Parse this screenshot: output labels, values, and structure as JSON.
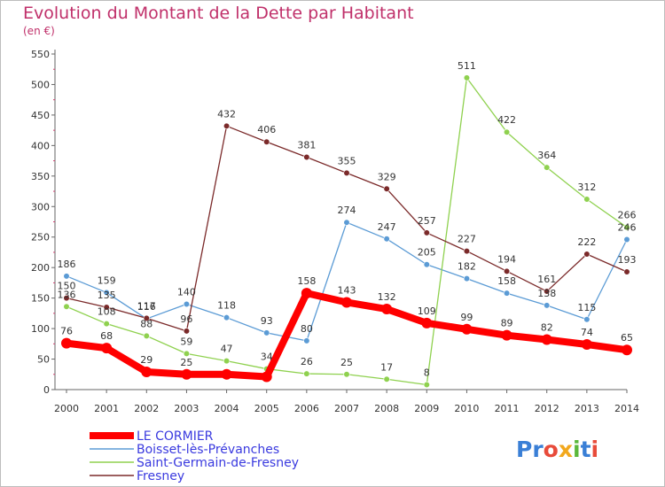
{
  "title": "Evolution du Montant de la Dette par Habitant",
  "subtitle": "(en €)",
  "logo": "Proxiti",
  "chart_data": {
    "type": "line",
    "title": "Evolution du Montant de la Dette par Habitant",
    "subtitle": "(en €)",
    "x": [
      "2000",
      "2001",
      "2002",
      "2003",
      "2004",
      "2005",
      "2006",
      "2007",
      "2008",
      "2009",
      "2010",
      "2011",
      "2012",
      "2013",
      "2014"
    ],
    "ylim": [
      0,
      550
    ],
    "yticks": [
      0,
      50,
      100,
      150,
      200,
      250,
      300,
      350,
      400,
      450,
      500,
      550
    ],
    "grid": false,
    "legend_position": "bottom-left",
    "series": [
      {
        "name": "LE CORMIER",
        "color": "#ff0000",
        "values": [
          76,
          68,
          29,
          25,
          25,
          21,
          158,
          143,
          132,
          109,
          99,
          89,
          82,
          74,
          65
        ],
        "labels": [
          "76",
          "68",
          "29",
          "25",
          "",
          "",
          "158",
          "143",
          "132",
          "109",
          "99",
          "89",
          "82",
          "74",
          "65"
        ]
      },
      {
        "name": "Boisset-lès-Prévanches",
        "color": "#5b9bd5",
        "values": [
          186,
          159,
          116,
          140,
          118,
          93,
          80,
          274,
          247,
          205,
          182,
          158,
          138,
          115,
          246
        ],
        "labels": [
          "186",
          "159",
          "116",
          "140",
          "118",
          "93",
          "80",
          "274",
          "247",
          "205",
          "182",
          "158",
          "138",
          "115",
          "246"
        ]
      },
      {
        "name": "Saint-Germain-de-Fresney",
        "color": "#8fd14f",
        "values": [
          136,
          108,
          88,
          59,
          47,
          34,
          26,
          25,
          17,
          8,
          511,
          422,
          364,
          312,
          266
        ],
        "labels": [
          "136",
          "108",
          "88",
          "59",
          "47",
          "34",
          "26",
          "25",
          "17",
          "8",
          "511",
          "422",
          "364",
          "312",
          "266"
        ]
      },
      {
        "name": "Fresney",
        "color": "#7b2a2a",
        "values": [
          150,
          135,
          117,
          96,
          432,
          406,
          381,
          355,
          329,
          257,
          227,
          194,
          161,
          222,
          193
        ],
        "labels": [
          "150",
          "135",
          "117",
          "96",
          "432",
          "406",
          "381",
          "355",
          "329",
          "257",
          "227",
          "194",
          "161",
          "222",
          "193"
        ]
      }
    ]
  }
}
